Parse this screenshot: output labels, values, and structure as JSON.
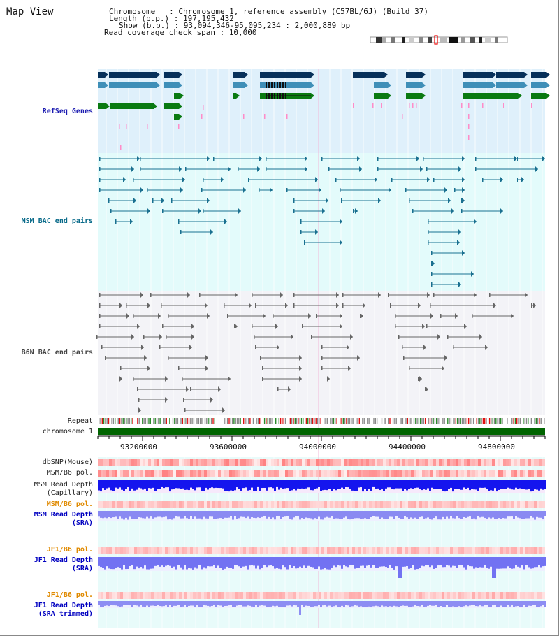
{
  "page": {
    "title": "Map View",
    "header": {
      "chromosome_line": "Chromosome   : Chromosome 1, reference assembly (C57BL/6J) (Build 37)",
      "length_line": "Length (b.p.) : 197,195,432",
      "show_line": "Show (b.p.) : 93,094,346-95,095,234 : 2,000,889 bp",
      "coverage_line": "Read coverage check span : 10,000"
    }
  },
  "tracks": {
    "refseq": "RefSeq Genes",
    "msm_bac": "MSM BAC end pairs",
    "b6n_bac": "B6N BAC end pairs",
    "repeat": "Repeat",
    "chromosome": "chromosome 1",
    "dbsnp": "dbSNP(Mouse)",
    "msm_b6_pol_1": "MSM/B6 pol.",
    "msm_depth_cap_1": "MSM Read Depth",
    "msm_depth_cap_2": "(Capillary)",
    "msm_b6_pol_2": "MSM/B6 pol.",
    "msm_depth_sra_1": "MSM Read Depth",
    "msm_depth_sra_2": "(SRA)",
    "jf1_b6_pol_1": "JF1/B6 pol.",
    "jf1_depth_sra_1": "JF1 Read Depth",
    "jf1_depth_sra_2": "(SRA)",
    "jf1_b6_pol_2": "JF1/B6 pol.",
    "jf1_depth_trim_1": "JF1 Read Depth",
    "jf1_depth_trim_2": "(SRA trimmed)"
  },
  "axis": {
    "ticks": [
      "93200000",
      "93600000",
      "94000000",
      "94400000",
      "94800000"
    ]
  },
  "colors": {
    "refseq_bg": "#dff0fb",
    "msm_bg": "#e3fbfb",
    "b6n_bg": "#f3f3f7",
    "dark_navy": "#06305a",
    "steel_blue": "#3f8fb8",
    "green": "#0a7a12",
    "chromosome_green": "#006400",
    "depth_blue": "#1a1af0",
    "depth_light": "#8a8af5"
  }
}
